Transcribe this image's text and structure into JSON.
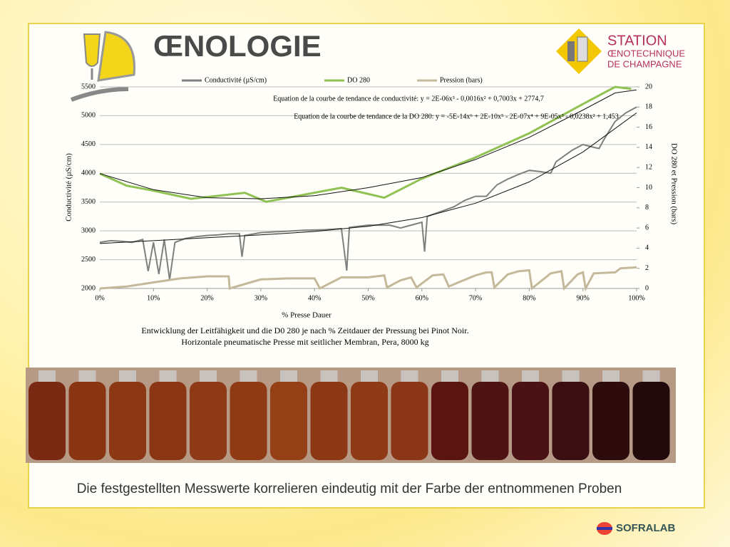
{
  "slide": {
    "title": "ŒNOLOGIE",
    "logo_lines": [
      "STATION",
      "ŒNOTECHNIQUE",
      "DE CHAMPAGNE"
    ],
    "caption": "Die festgestellten Messwerte korrelieren eindeutig mit der Farbe der entnommenen Proben",
    "brand": "SOFRALAB"
  },
  "chart_data": {
    "type": "line",
    "xlabel": "% Presse Dauer",
    "ylabel": "Conductivité (µS/cm)",
    "y2label": "DO 280 et Pression (bars)",
    "notes": [
      "Entwicklung der Leitfähigkeit und  die D0 280 je nach  %  Zeitdauer der Pressung bei  Pinot Noir.",
      "Horizontale pneumatische Presse mit seitlicher Membran, Pera, 8000 kg"
    ],
    "legend": "top",
    "grid": true,
    "xlim": [
      0,
      100
    ],
    "xticks": [
      {
        "value": 0,
        "label": "0%"
      },
      {
        "value": 10,
        "label": "10%"
      },
      {
        "value": 20,
        "label": "20%"
      },
      {
        "value": 30,
        "label": "30%"
      },
      {
        "value": 40,
        "label": "40%"
      },
      {
        "value": 50,
        "label": "50%"
      },
      {
        "value": 60,
        "label": "60%"
      },
      {
        "value": 70,
        "label": "70%"
      },
      {
        "value": 80,
        "label": "80%"
      },
      {
        "value": 90,
        "label": "90%"
      },
      {
        "value": 100,
        "label": "100%"
      }
    ],
    "ylim": [
      2000,
      5500
    ],
    "yticks": [
      2000,
      2500,
      3000,
      3500,
      4000,
      4500,
      5000,
      5500
    ],
    "y2lim": [
      0,
      20
    ],
    "y2ticks": [
      0,
      2,
      4,
      6,
      8,
      10,
      12,
      14,
      16,
      18,
      20
    ],
    "series": [
      {
        "name": "Conductivité (µS/cm)",
        "color": "#7f7f7f",
        "axis": "y",
        "x": [
          0,
          2,
          4,
          6,
          8,
          9,
          10,
          11,
          12,
          13,
          14,
          16,
          18,
          20,
          22,
          24,
          26,
          26.5,
          27,
          30,
          34,
          38,
          42,
          45,
          46,
          46.5,
          50,
          54,
          56,
          58,
          60,
          60.5,
          61,
          64,
          66,
          68,
          70,
          72,
          73,
          74,
          76,
          78,
          80,
          82,
          84,
          85,
          88,
          90,
          92,
          93,
          94,
          96,
          98,
          100
        ],
        "values": [
          2800,
          2830,
          2820,
          2800,
          2850,
          2300,
          2800,
          2250,
          2850,
          2150,
          2800,
          2870,
          2900,
          2920,
          2930,
          2950,
          2950,
          2550,
          2920,
          2970,
          2990,
          3010,
          3020,
          3040,
          2310,
          3060,
          3100,
          3100,
          3050,
          3100,
          3150,
          2640,
          3250,
          3350,
          3420,
          3530,
          3600,
          3600,
          3700,
          3800,
          3900,
          3980,
          4050,
          4030,
          4000,
          4200,
          4400,
          4500,
          4450,
          4430,
          4600,
          4900,
          5050,
          5150
        ]
      },
      {
        "name": "DO 280",
        "color": "#8fc253",
        "axis": "y2",
        "x": [
          0,
          5,
          10,
          17,
          27,
          31,
          45,
          53,
          60,
          70,
          80,
          90,
          96,
          99
        ],
        "values": [
          11.4,
          10.2,
          9.7,
          8.9,
          9.5,
          8.6,
          10.0,
          9.0,
          10.9,
          13.0,
          15.4,
          18.3,
          20,
          19.8
        ]
      },
      {
        "name": "Pression (bars)",
        "color": "#c4b99a",
        "axis": "y2",
        "x": [
          0,
          5,
          10,
          15,
          20,
          24,
          24.2,
          30,
          35,
          40,
          41,
          45,
          50,
          53,
          53.5,
          56,
          58,
          59,
          62,
          64,
          65,
          70,
          72,
          73,
          73.5,
          76,
          78,
          80,
          80.5,
          84,
          86,
          86.5,
          89,
          90,
          90.5,
          92,
          96,
          97,
          100
        ],
        "values": [
          0,
          0.2,
          0.6,
          1,
          1.2,
          1.2,
          0,
          0.9,
          1.0,
          1.0,
          0,
          1.1,
          1.1,
          1.3,
          0.1,
          0.8,
          1.1,
          0.1,
          1.3,
          1.4,
          0.2,
          1.3,
          1.6,
          1.6,
          0.1,
          1.4,
          1.7,
          1.8,
          0,
          1.5,
          1.7,
          0,
          1.4,
          1.6,
          0,
          1.5,
          1.6,
          2.0,
          2.1
        ]
      }
    ],
    "trendlines": [
      {
        "equation": "Equation de la courbe de tendance  de conductivité: y = 2E-06x³ - 0,0016x² + 0,7003x + 2774,7",
        "color": "#111111",
        "axis": "y",
        "x": [
          0,
          10,
          20,
          30,
          40,
          50,
          60,
          70,
          80,
          90,
          100
        ],
        "values": [
          2780,
          2830,
          2880,
          2930,
          2990,
          3080,
          3230,
          3480,
          3850,
          4370,
          5050
        ]
      },
      {
        "equation": "Equation de la courbe de tendance de la DO 280: y = -5E-14x⁶ + 2E-10x⁵ - 2E-07x⁴ + 9E-05x³ - 0,0238x² + 1,453",
        "color": "#111111",
        "axis": "y2",
        "x": [
          0,
          10,
          20,
          30,
          40,
          50,
          60,
          70,
          80,
          90,
          96,
          100
        ],
        "values": [
          11.4,
          9.8,
          9.0,
          8.9,
          9.2,
          10.0,
          11.0,
          12.8,
          15.0,
          17.7,
          19.4,
          19.7
        ]
      }
    ]
  }
}
